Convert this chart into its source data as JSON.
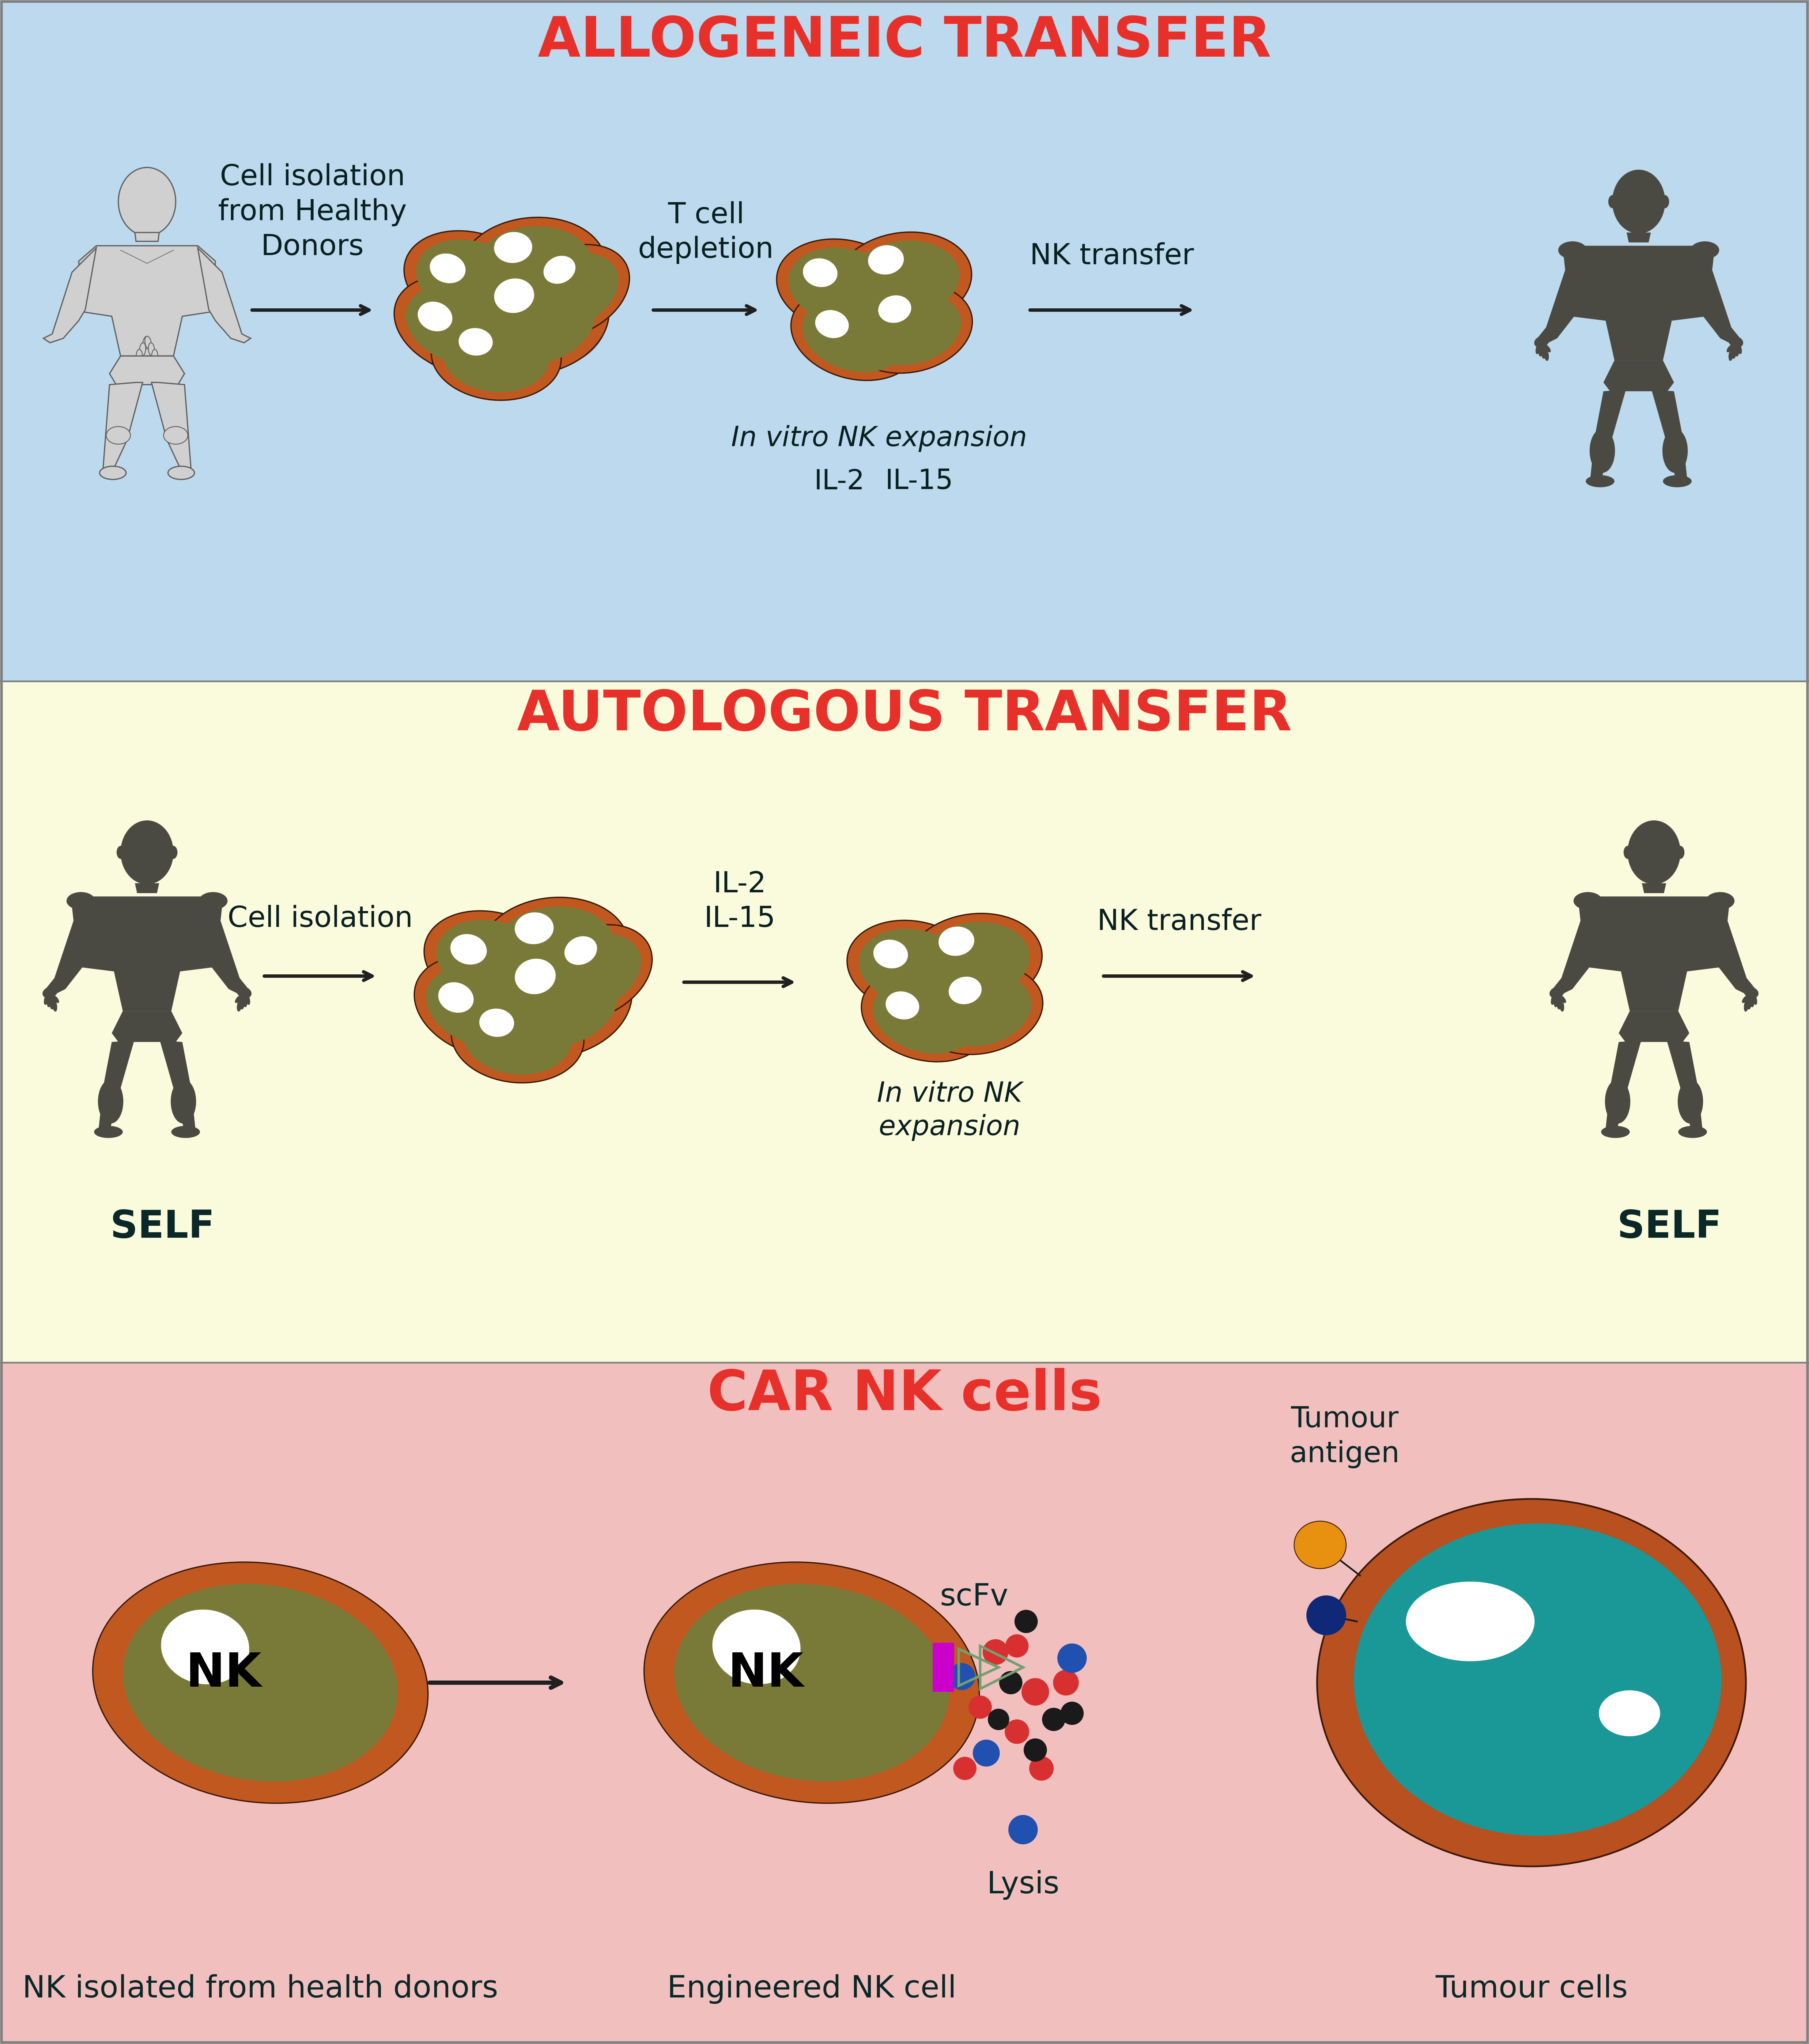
{
  "bg_blue": "#BDD9EE",
  "bg_yellow": "#FAFADC",
  "bg_pink": "#F2BFBF",
  "title1": "ALLOGENEIC TRANSFER",
  "title2": "AUTOLOGOUS TRANSFER",
  "title3": "CAR NK cells",
  "title_color_red": "#E8302A",
  "cell_outer_color": "#C05820",
  "cell_inner_color": "#7A7A38",
  "cell_purple": "#8060A8",
  "person_fill_light": "#D0D0D0",
  "person_outline_light": "#606060",
  "person_dark": "#4A4A42",
  "arrow_color": "#202020",
  "text_color": "#0A2020",
  "text_color_dark": "#0A2828",
  "tumour_fill": "#1A9898",
  "tumour_border": "#B85020",
  "antigen_orange": "#E89010",
  "antigen_blue_dark": "#102878",
  "lysis_red": "#D83030",
  "lysis_blue": "#2050B0",
  "car_magenta": "#CC00CC",
  "car_arrow_color": "#70A070",
  "border_color": "#808080"
}
